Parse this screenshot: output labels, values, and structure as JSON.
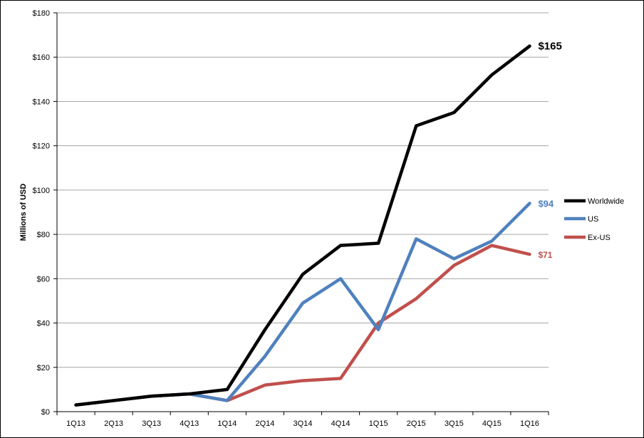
{
  "chart_data": {
    "type": "line",
    "categories": [
      "1Q13",
      "2Q13",
      "3Q13",
      "4Q13",
      "1Q14",
      "2Q14",
      "3Q14",
      "4Q14",
      "1Q15",
      "2Q15",
      "3Q15",
      "4Q15",
      "1Q16"
    ],
    "ylabel": "Millions of USD",
    "ylim": [
      0,
      180
    ],
    "yticks": [
      "$0",
      "$20",
      "$40",
      "$60",
      "$80",
      "$100",
      "$120",
      "$140",
      "$160",
      "$180"
    ],
    "grid": true,
    "legend_position": "right",
    "series": [
      {
        "name": "Worldwide",
        "color": "#000000",
        "values": [
          3,
          5,
          7,
          8,
          10,
          37,
          62,
          75,
          76,
          129,
          135,
          152,
          165
        ],
        "end_label": "$165"
      },
      {
        "name": "US",
        "color": "#4f81bd",
        "values": [
          3,
          5,
          7,
          8,
          5,
          25,
          49,
          60,
          37,
          78,
          69,
          77,
          94
        ],
        "end_label": "$94"
      },
      {
        "name": "Ex-US",
        "color": "#c0504d",
        "values": [
          3,
          5,
          7,
          8,
          5,
          12,
          14,
          15,
          40,
          51,
          66,
          75,
          71
        ],
        "end_label": "$71"
      }
    ]
  }
}
